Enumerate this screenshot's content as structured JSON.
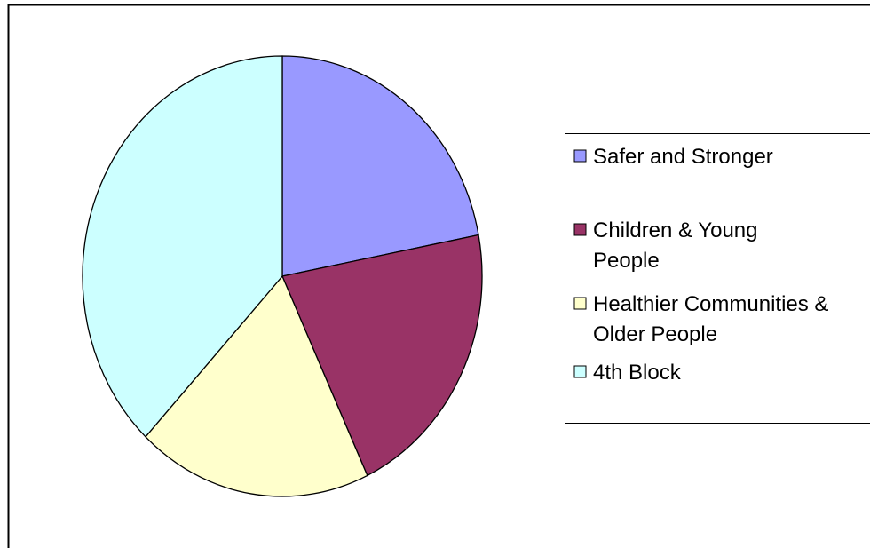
{
  "chart_data": {
    "type": "pie",
    "categories": [
      "Safer and Stronger",
      "Children & Young People",
      "Healthier Communities & Older People",
      "4th Block"
    ],
    "values": [
      22,
      21,
      19,
      38
    ],
    "colors": [
      "#9999FF",
      "#993366",
      "#FFFFCC",
      "#CCFFFF"
    ],
    "legend_labels": [
      [
        "Safer and Stronger"
      ],
      [
        "Children & Young",
        "People"
      ],
      [
        "Healthier Communities &",
        "Older People"
      ],
      [
        "4th Block"
      ]
    ],
    "legend_position": "right",
    "start_angle": "top, clockwise"
  }
}
